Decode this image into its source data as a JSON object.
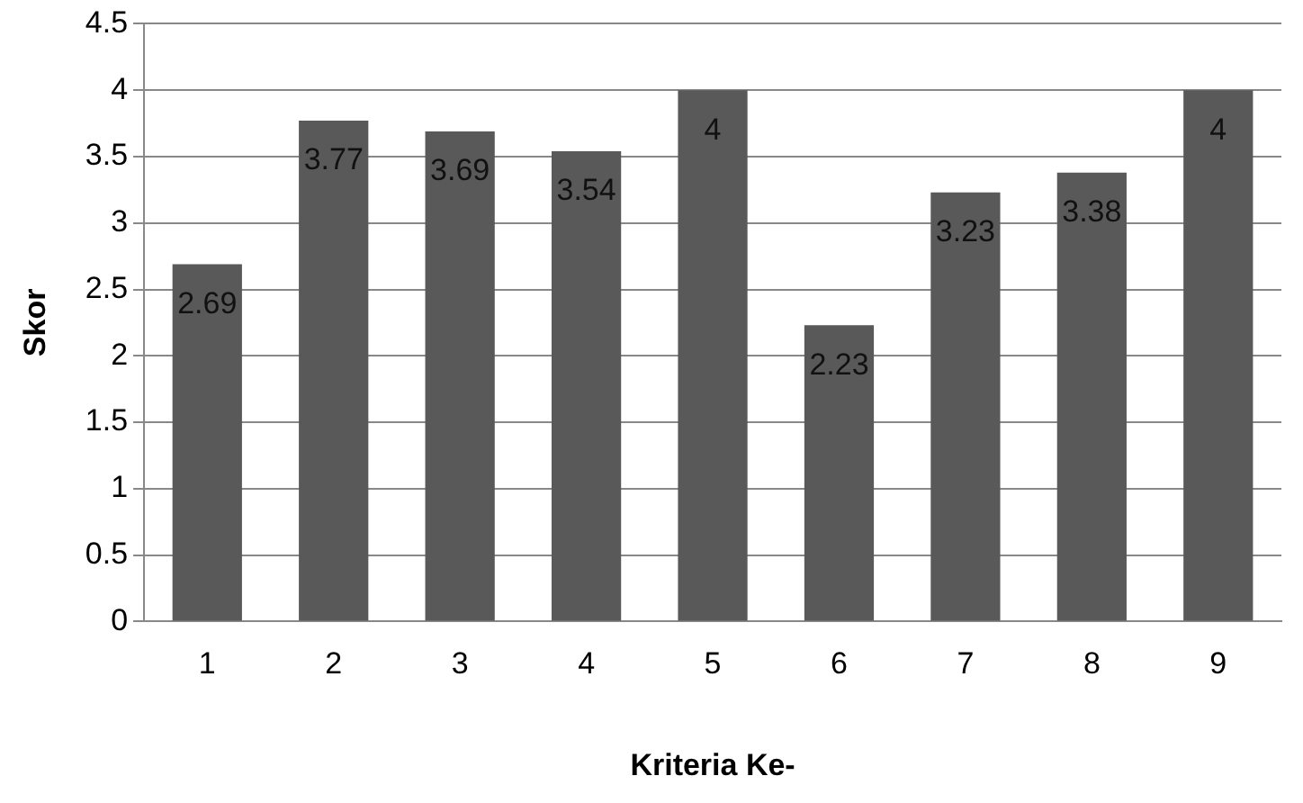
{
  "chart_data": {
    "type": "bar",
    "xlabel": "Kriteria Ke-",
    "ylabel": "Skor",
    "categories": [
      "1",
      "2",
      "3",
      "4",
      "5",
      "6",
      "7",
      "8",
      "9"
    ],
    "values": [
      2.69,
      3.77,
      3.69,
      3.54,
      4,
      2.23,
      3.23,
      3.38,
      4
    ],
    "color": "#595959",
    "ylim": [
      0,
      4.5
    ],
    "yticks": [
      0,
      0.5,
      1,
      1.5,
      2,
      2.5,
      3,
      3.5,
      4,
      4.5
    ],
    "grid": "y",
    "data_labels": true
  }
}
